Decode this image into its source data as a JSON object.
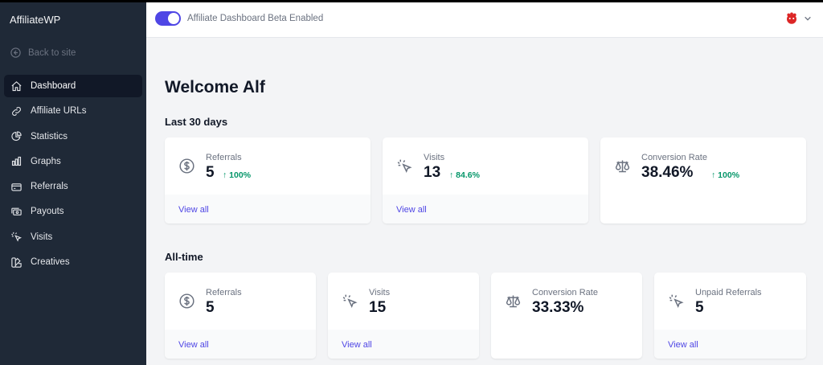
{
  "sidebar": {
    "brand": "AffiliateWP",
    "back_label": "Back to site",
    "items": [
      {
        "label": "Dashboard",
        "icon": "home-icon",
        "active": true
      },
      {
        "label": "Affiliate URLs",
        "icon": "link-icon"
      },
      {
        "label": "Statistics",
        "icon": "pie-chart-icon"
      },
      {
        "label": "Graphs",
        "icon": "bar-chart-icon"
      },
      {
        "label": "Referrals",
        "icon": "credit-card-icon"
      },
      {
        "label": "Payouts",
        "icon": "cash-icon"
      },
      {
        "label": "Visits",
        "icon": "cursor-click-icon"
      },
      {
        "label": "Creatives",
        "icon": "color-swatch-icon"
      }
    ]
  },
  "topbar": {
    "toggle_label": "Affiliate Dashboard Beta Enabled",
    "toggle_on": true,
    "accent_color": "#4f46e5"
  },
  "main": {
    "welcome": "Welcome Alf",
    "last30": {
      "title": "Last 30 days",
      "cards": [
        {
          "label": "Referrals",
          "value": "5",
          "change": "100%",
          "link": "View all",
          "icon": "dollar-icon"
        },
        {
          "label": "Visits",
          "value": "13",
          "change": "84.6%",
          "link": "View all",
          "icon": "cursor-click-icon"
        },
        {
          "label": "Conversion Rate",
          "value": "38.46%",
          "change": "100%",
          "icon": "scale-icon"
        }
      ]
    },
    "alltime": {
      "title": "All-time",
      "cards": [
        {
          "label": "Referrals",
          "value": "5",
          "link": "View all",
          "icon": "dollar-icon"
        },
        {
          "label": "Visits",
          "value": "15",
          "link": "View all",
          "icon": "cursor-click-icon"
        },
        {
          "label": "Conversion Rate",
          "value": "33.33%",
          "icon": "scale-icon"
        },
        {
          "label": "Unpaid Referrals",
          "value": "5",
          "link": "View all",
          "icon": "cursor-click-icon"
        }
      ]
    }
  }
}
